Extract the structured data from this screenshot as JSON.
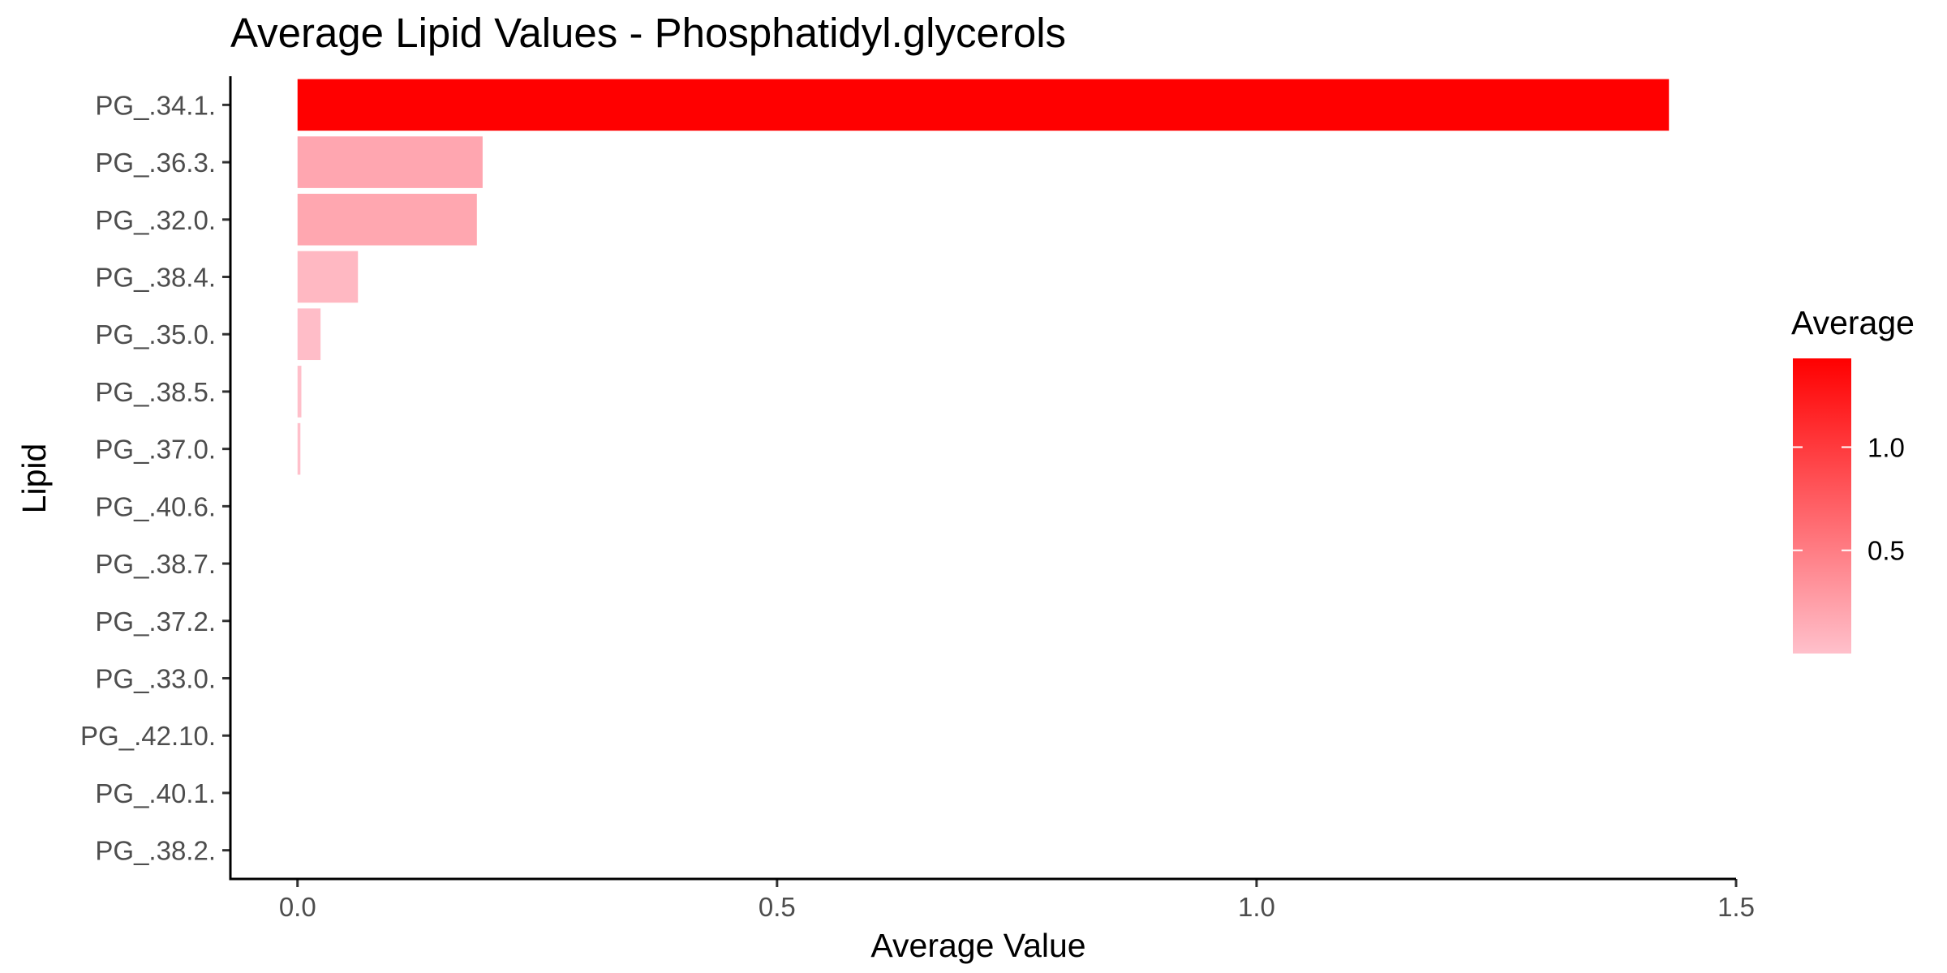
{
  "chart_data": {
    "type": "bar",
    "orientation": "horizontal",
    "title": "Average Lipid Values - Phosphatidyl.glycerols",
    "xlabel": "Average Value",
    "ylabel": "Lipid",
    "xlim": [
      -0.07,
      1.5
    ],
    "x_ticks": [
      {
        "value": 0.0,
        "label": "0.0"
      },
      {
        "value": 0.5,
        "label": "0.5"
      },
      {
        "value": 1.0,
        "label": "1.0"
      },
      {
        "value": 1.5,
        "label": "1.5"
      }
    ],
    "categories": [
      "PG_.34.1.",
      "PG_.36.3.",
      "PG_.32.0.",
      "PG_.38.4.",
      "PG_.35.0.",
      "PG_.38.5.",
      "PG_.37.0.",
      "PG_.40.6.",
      "PG_.38.7.",
      "PG_.37.2.",
      "PG_.33.0.",
      "PG_.42.10.",
      "PG_.40.1.",
      "PG_.38.2."
    ],
    "values": [
      1.43,
      0.193,
      0.187,
      0.063,
      0.024,
      0.004,
      0.003,
      0.0,
      0.0,
      0.0,
      0.0,
      0.0,
      0.0,
      0.0
    ],
    "grid": false,
    "legend": {
      "title": "Average",
      "placement": "right",
      "type": "gradient",
      "low_color": "#FFC0CB",
      "high_color": "#FF0000",
      "range": [
        0.0,
        1.43
      ],
      "ticks": [
        {
          "value": 0.5,
          "label": "0.5"
        },
        {
          "value": 1.0,
          "label": "1.0"
        }
      ]
    }
  }
}
